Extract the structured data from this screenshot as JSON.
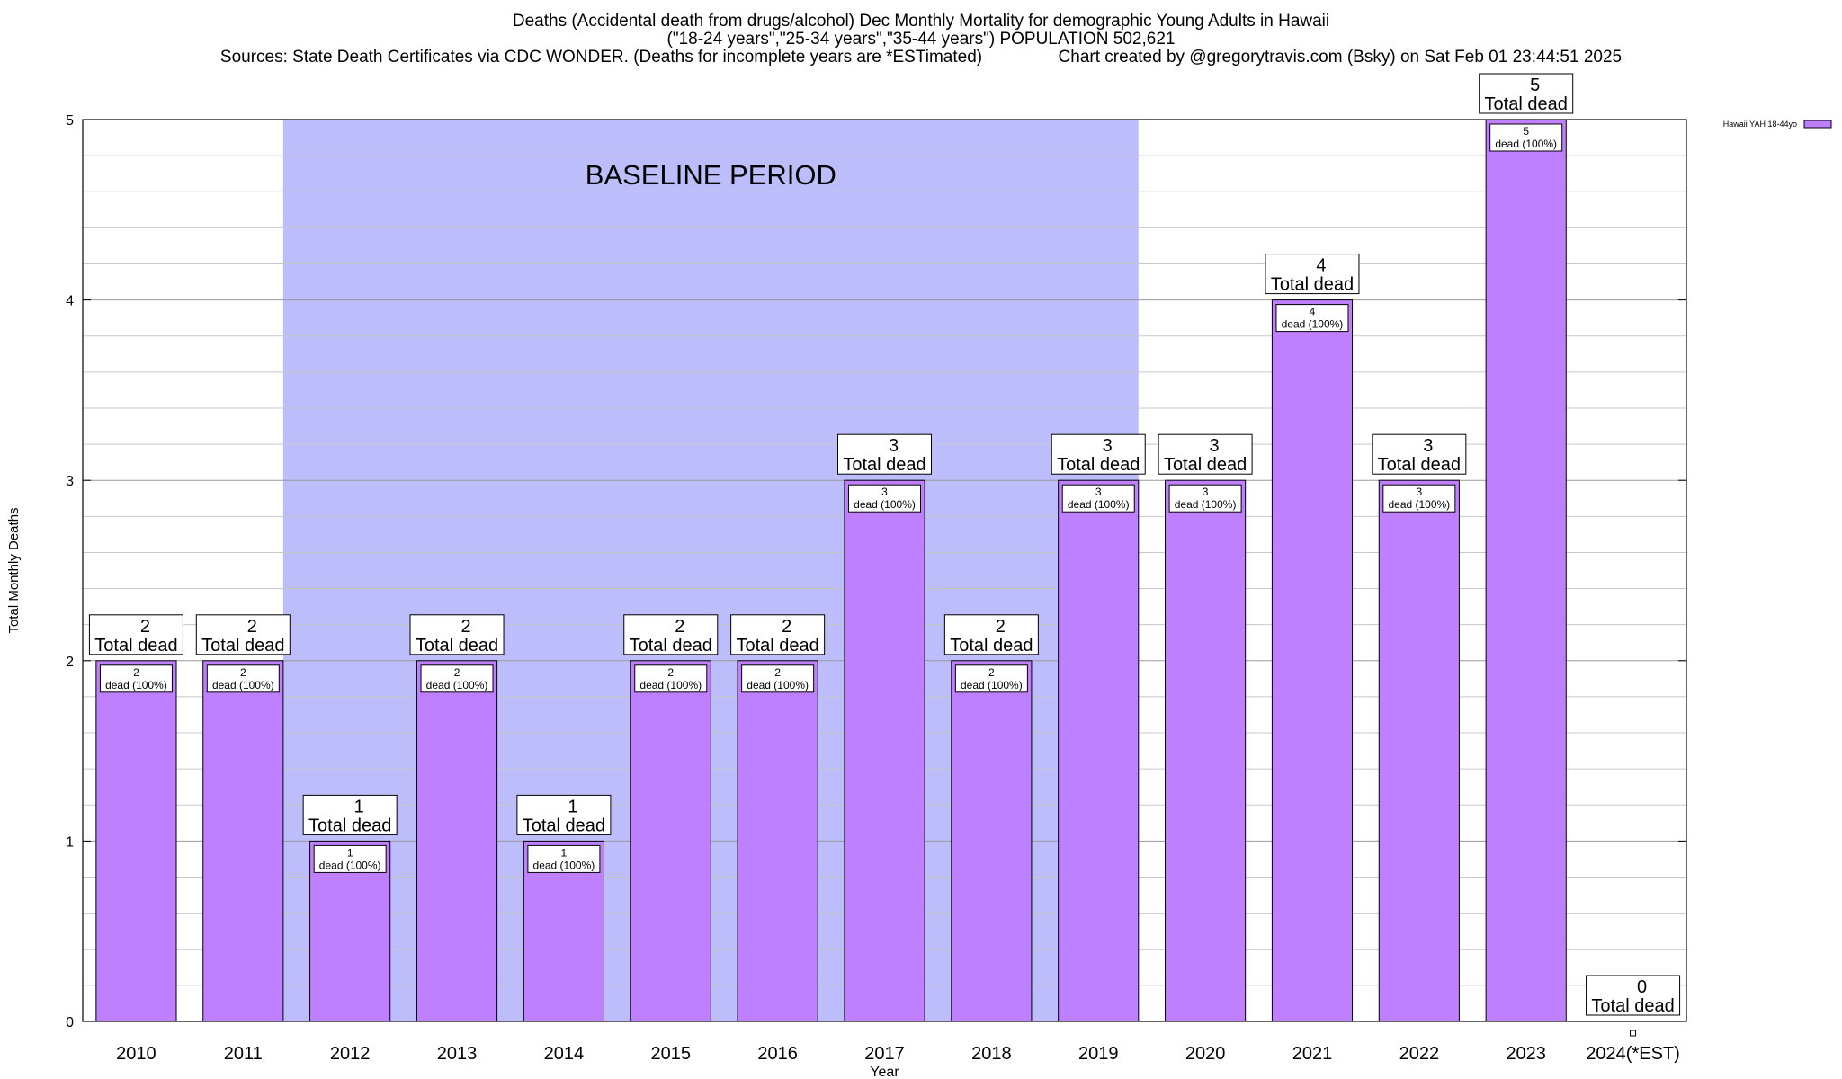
{
  "title_lines": [
    "Deaths (Accidental death from drugs/alcohol) Dec Monthly Mortality for demographic Young Adults in Hawaii",
    "(\"18-24 years\",\"25-34 years\",\"35-44 years\") POPULATION 502,621",
    "Sources: State Death Certificates via CDC WONDER. (Deaths for incomplete years are *ESTimated)                Chart created by @gregorytravis.com (Bsky) on Sat Feb 01 23:44:51 2025"
  ],
  "chart_data": {
    "type": "bar",
    "xlabel": "Year",
    "ylabel": "Total Monthly Deaths",
    "ylim": [
      0,
      5
    ],
    "yticks": [
      0,
      1,
      2,
      3,
      4,
      5
    ],
    "grid": true,
    "legend_position": "top-right",
    "baseline": {
      "label": "BASELINE PERIOD",
      "from": "2012",
      "to": "2019",
      "color": "#bdbdfc"
    },
    "categories": [
      "2010",
      "2011",
      "2012",
      "2013",
      "2014",
      "2015",
      "2016",
      "2017",
      "2018",
      "2019",
      "2020",
      "2021",
      "2022",
      "2023",
      "2024(*EST)"
    ],
    "series": [
      {
        "name": "Hawaii YAH 18-44yo",
        "color": "#bf80ff",
        "values": [
          2,
          2,
          1,
          2,
          1,
          2,
          2,
          3,
          2,
          3,
          3,
          4,
          3,
          5,
          0
        ]
      }
    ],
    "total_labels": [
      "2\nTotal dead",
      "2\nTotal dead",
      "1\nTotal dead",
      "2\nTotal dead",
      "1\nTotal dead",
      "2\nTotal dead",
      "2\nTotal dead",
      "3\nTotal dead",
      "2\nTotal dead",
      "3\nTotal dead",
      "3\nTotal dead",
      "4\nTotal dead",
      "3\nTotal dead",
      "5\nTotal dead",
      "0\nTotal dead"
    ],
    "inner_labels": [
      "2\ndead (100%)",
      "2\ndead (100%)",
      "1\ndead (100%)",
      "2\ndead (100%)",
      "1\ndead (100%)",
      "2\ndead (100%)",
      "2\ndead (100%)",
      "3\ndead (100%)",
      "2\ndead (100%)",
      "3\ndead (100%)",
      "3\ndead (100%)",
      "4\ndead (100%)",
      "3\ndead (100%)",
      "5\ndead (100%)",
      ""
    ]
  }
}
